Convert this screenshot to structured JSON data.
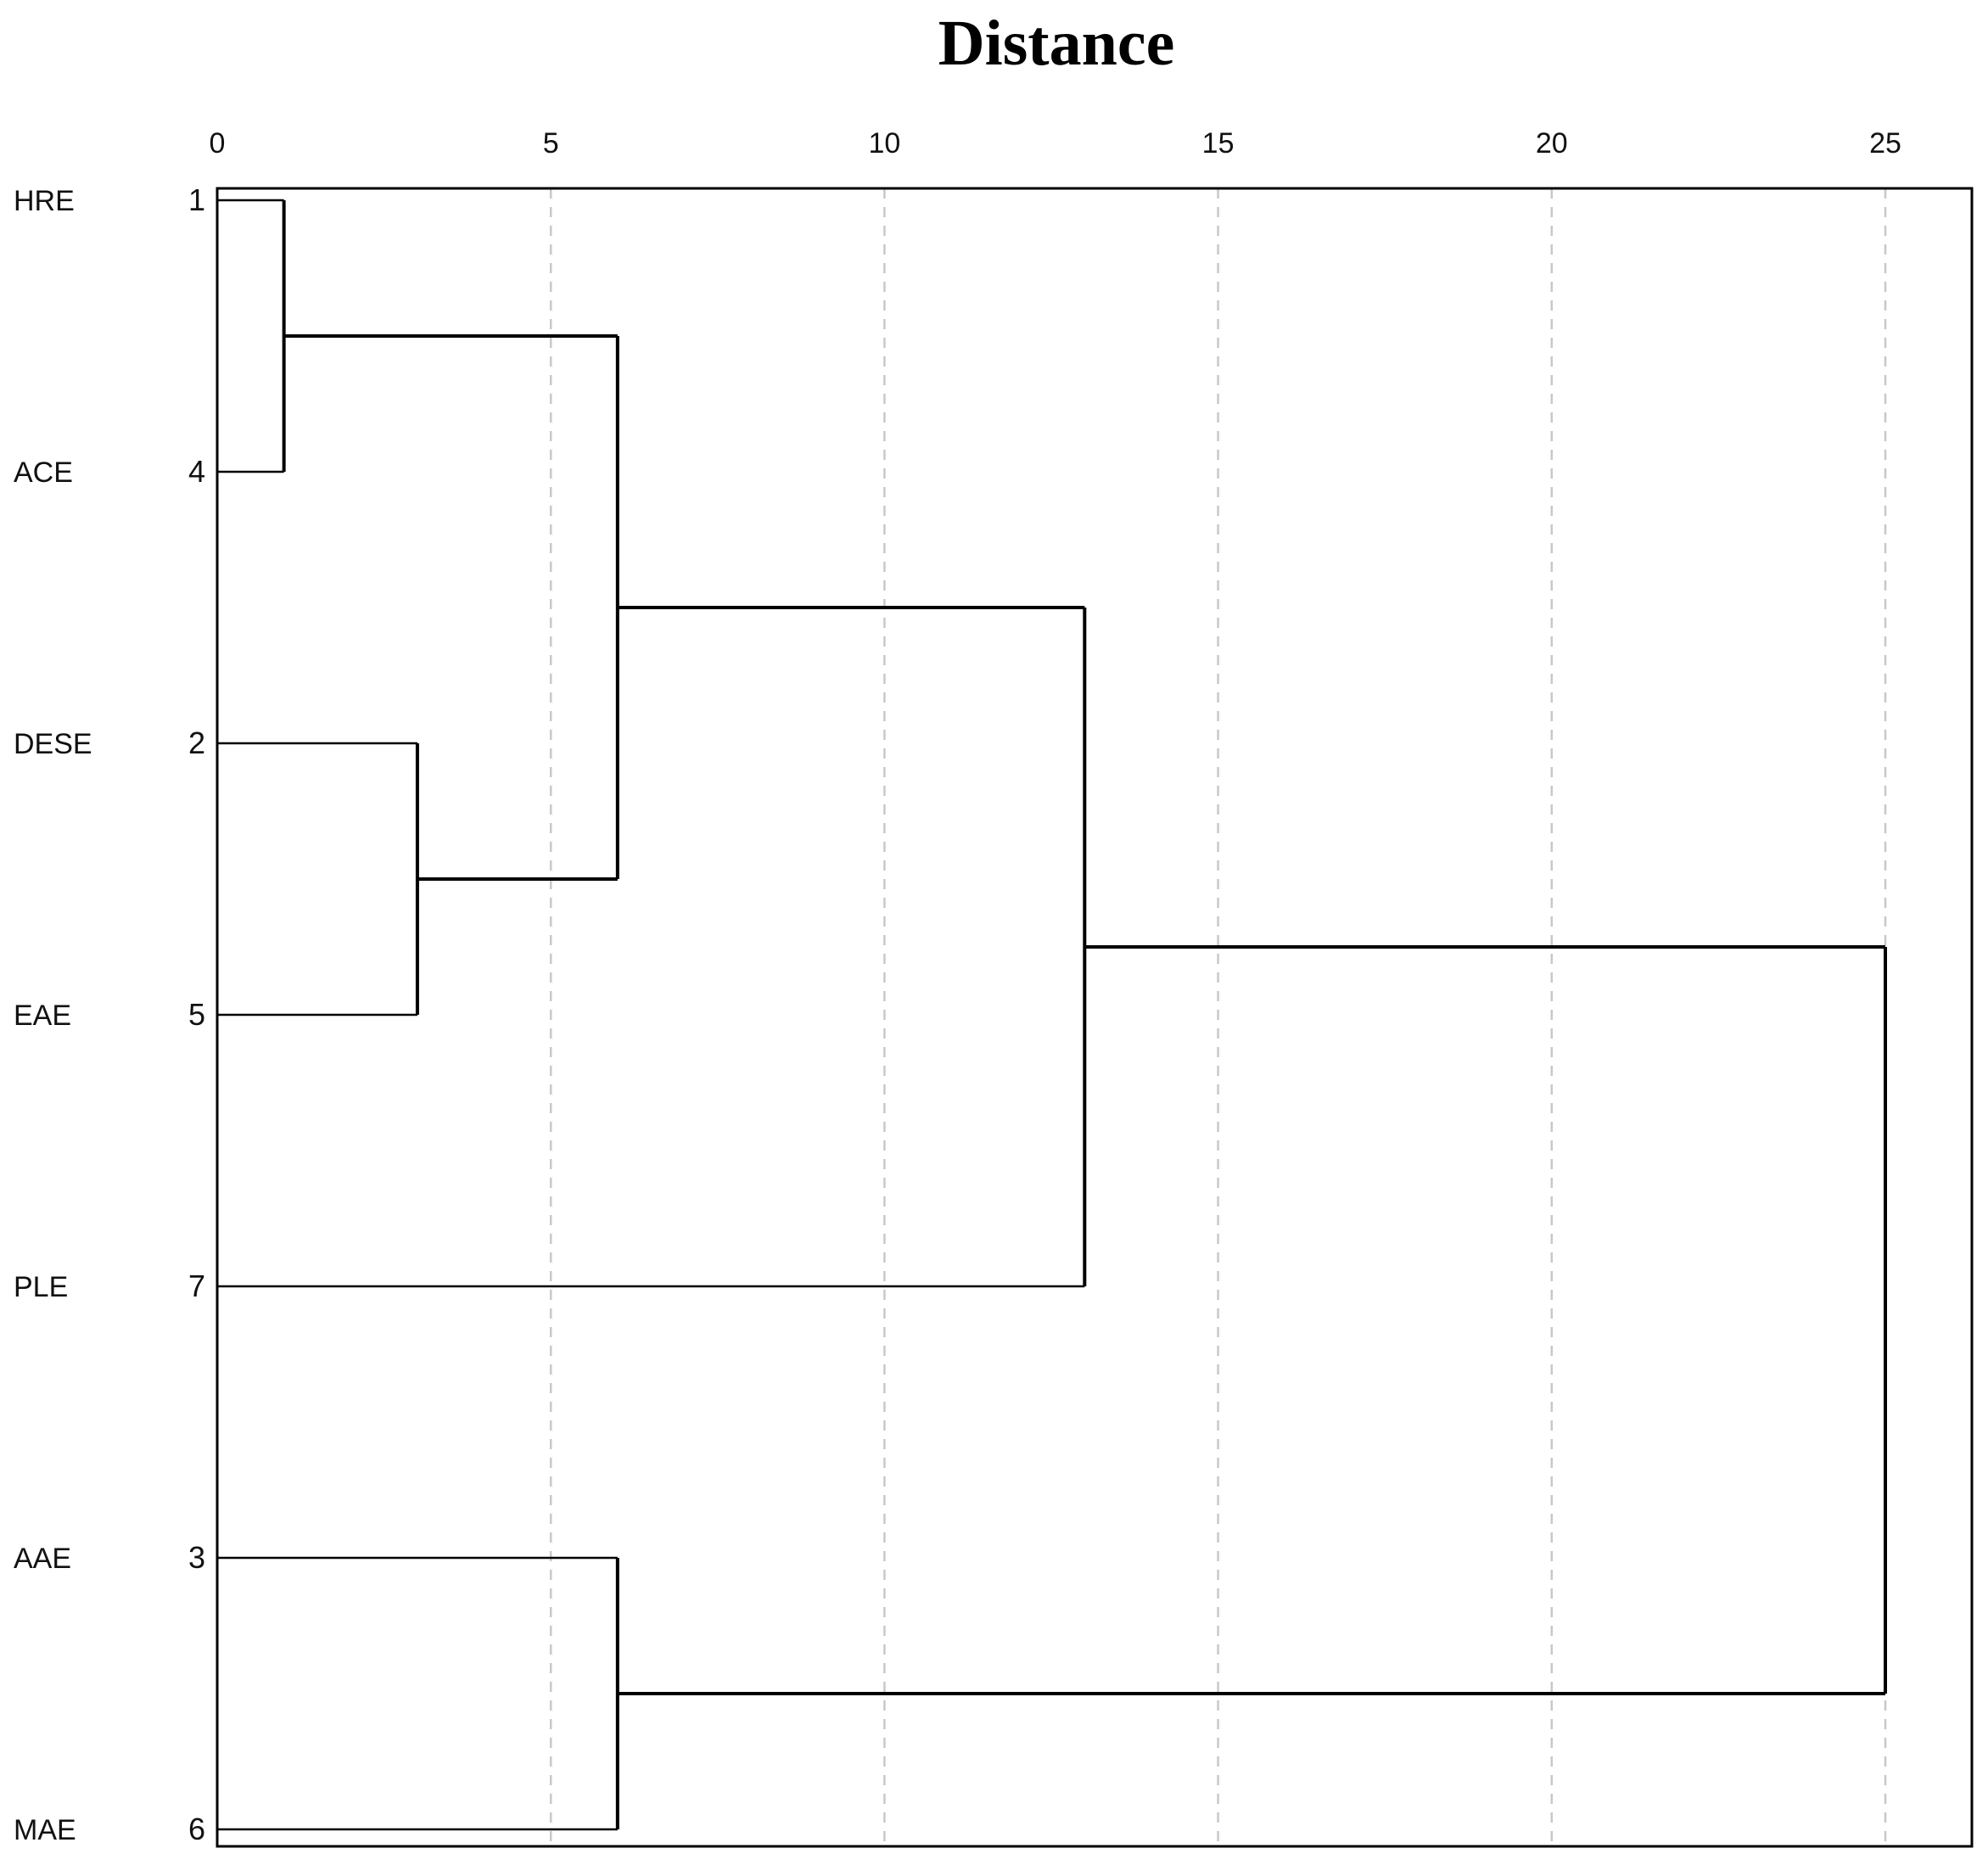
{
  "chart_data": {
    "type": "dendrogram",
    "title": "Distance",
    "xlim": [
      0,
      26
    ],
    "x_ticks": [
      0,
      5,
      10,
      15,
      20,
      25
    ],
    "grid": true,
    "leaves": [
      {
        "label": "HRE",
        "id": "1"
      },
      {
        "label": "ACE",
        "id": "4"
      },
      {
        "label": "DESE",
        "id": "2"
      },
      {
        "label": "EAE",
        "id": "5"
      },
      {
        "label": "PLE",
        "id": "7"
      },
      {
        "label": "AAE",
        "id": "3"
      },
      {
        "label": "MAE",
        "id": "6"
      }
    ],
    "merges": [
      {
        "name": "c1",
        "children": [
          "HRE",
          "ACE"
        ],
        "distance": 1
      },
      {
        "name": "c2",
        "children": [
          "DESE",
          "EAE"
        ],
        "distance": 3
      },
      {
        "name": "c3",
        "children": [
          "c1",
          "c2"
        ],
        "distance": 6
      },
      {
        "name": "c4",
        "children": [
          "AAE",
          "MAE"
        ],
        "distance": 6
      },
      {
        "name": "c5",
        "children": [
          "c3",
          "PLE"
        ],
        "distance": 13
      },
      {
        "name": "c6",
        "children": [
          "c5",
          "c4"
        ],
        "distance": 25
      }
    ]
  }
}
